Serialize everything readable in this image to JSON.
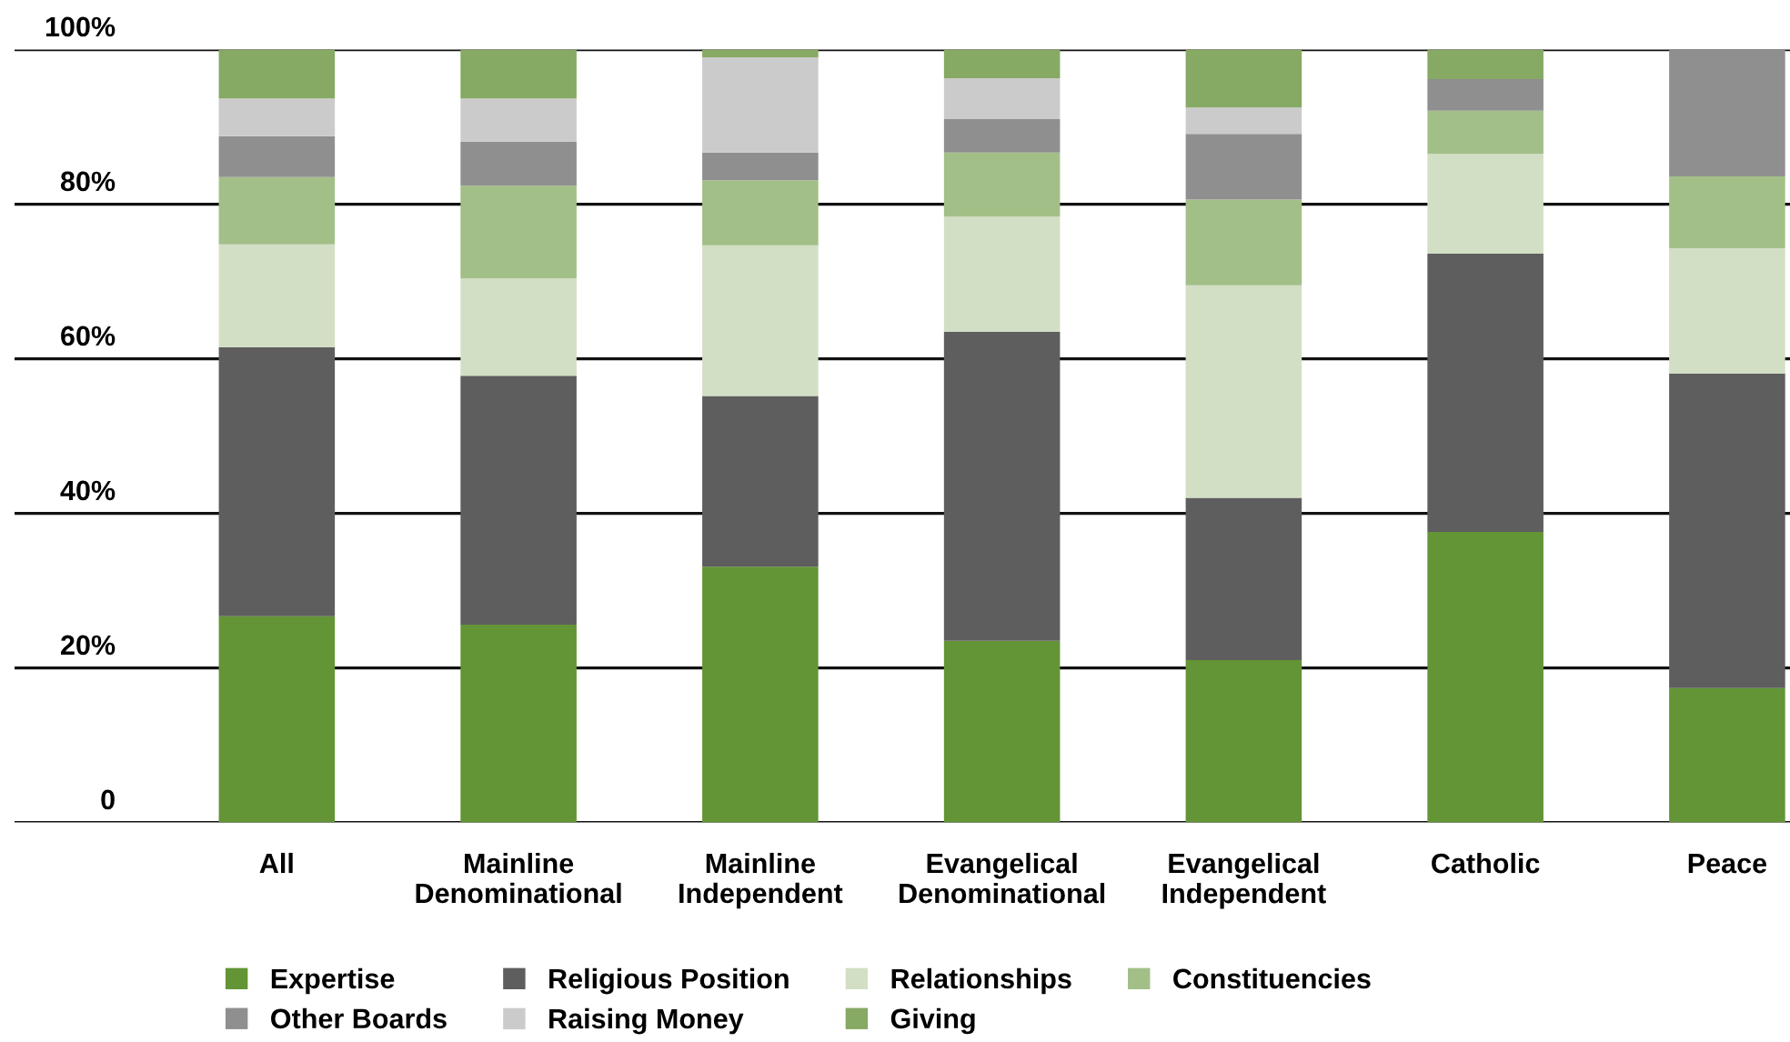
{
  "chart_data": {
    "type": "bar",
    "stacked": true,
    "categories": [
      "All",
      "Mainline\nDenominational",
      "Mainline\nIndependent",
      "Evangelical\nDenominational",
      "Evangelical\nIndependent",
      "Catholic",
      "Peace"
    ],
    "series": [
      {
        "name": "Expertise",
        "color": "#639435",
        "values": [
          26.7,
          25.6,
          33.1,
          23.5,
          21.0,
          37.6,
          17.4
        ]
      },
      {
        "name": "Religious Position",
        "color": "#5e5e5e",
        "values": [
          34.8,
          32.2,
          22.1,
          40.0,
          21.0,
          36.0,
          40.7
        ]
      },
      {
        "name": "Relationships",
        "color": "#d2dfc4",
        "values": [
          13.3,
          12.6,
          19.5,
          14.9,
          27.5,
          12.9,
          16.2
        ]
      },
      {
        "name": "Constituencies",
        "color": "#a3bf88",
        "values": [
          8.7,
          12.0,
          8.4,
          8.3,
          11.1,
          5.6,
          9.3
        ]
      },
      {
        "name": "Other Boards",
        "color": "#8f8f8f",
        "values": [
          5.3,
          5.7,
          3.6,
          4.3,
          8.5,
          4.1,
          16.4
        ]
      },
      {
        "name": "Raising Money",
        "color": "#cbcbcb",
        "values": [
          4.9,
          5.6,
          12.3,
          5.3,
          3.4,
          0,
          0
        ]
      },
      {
        "name": "Giving",
        "color": "#86a963",
        "values": [
          6.3,
          6.3,
          1.0,
          3.7,
          7.5,
          3.8,
          0
        ]
      }
    ],
    "ylim": [
      0,
      100
    ],
    "yticks": [
      {
        "value": 0,
        "label": "0"
      },
      {
        "value": 20,
        "label": "20%"
      },
      {
        "value": 40,
        "label": "40%"
      },
      {
        "value": 60,
        "label": "60%"
      },
      {
        "value": 80,
        "label": "80%"
      },
      {
        "value": 100,
        "label": "100%"
      }
    ],
    "grid": "y",
    "legend": "bottom"
  }
}
